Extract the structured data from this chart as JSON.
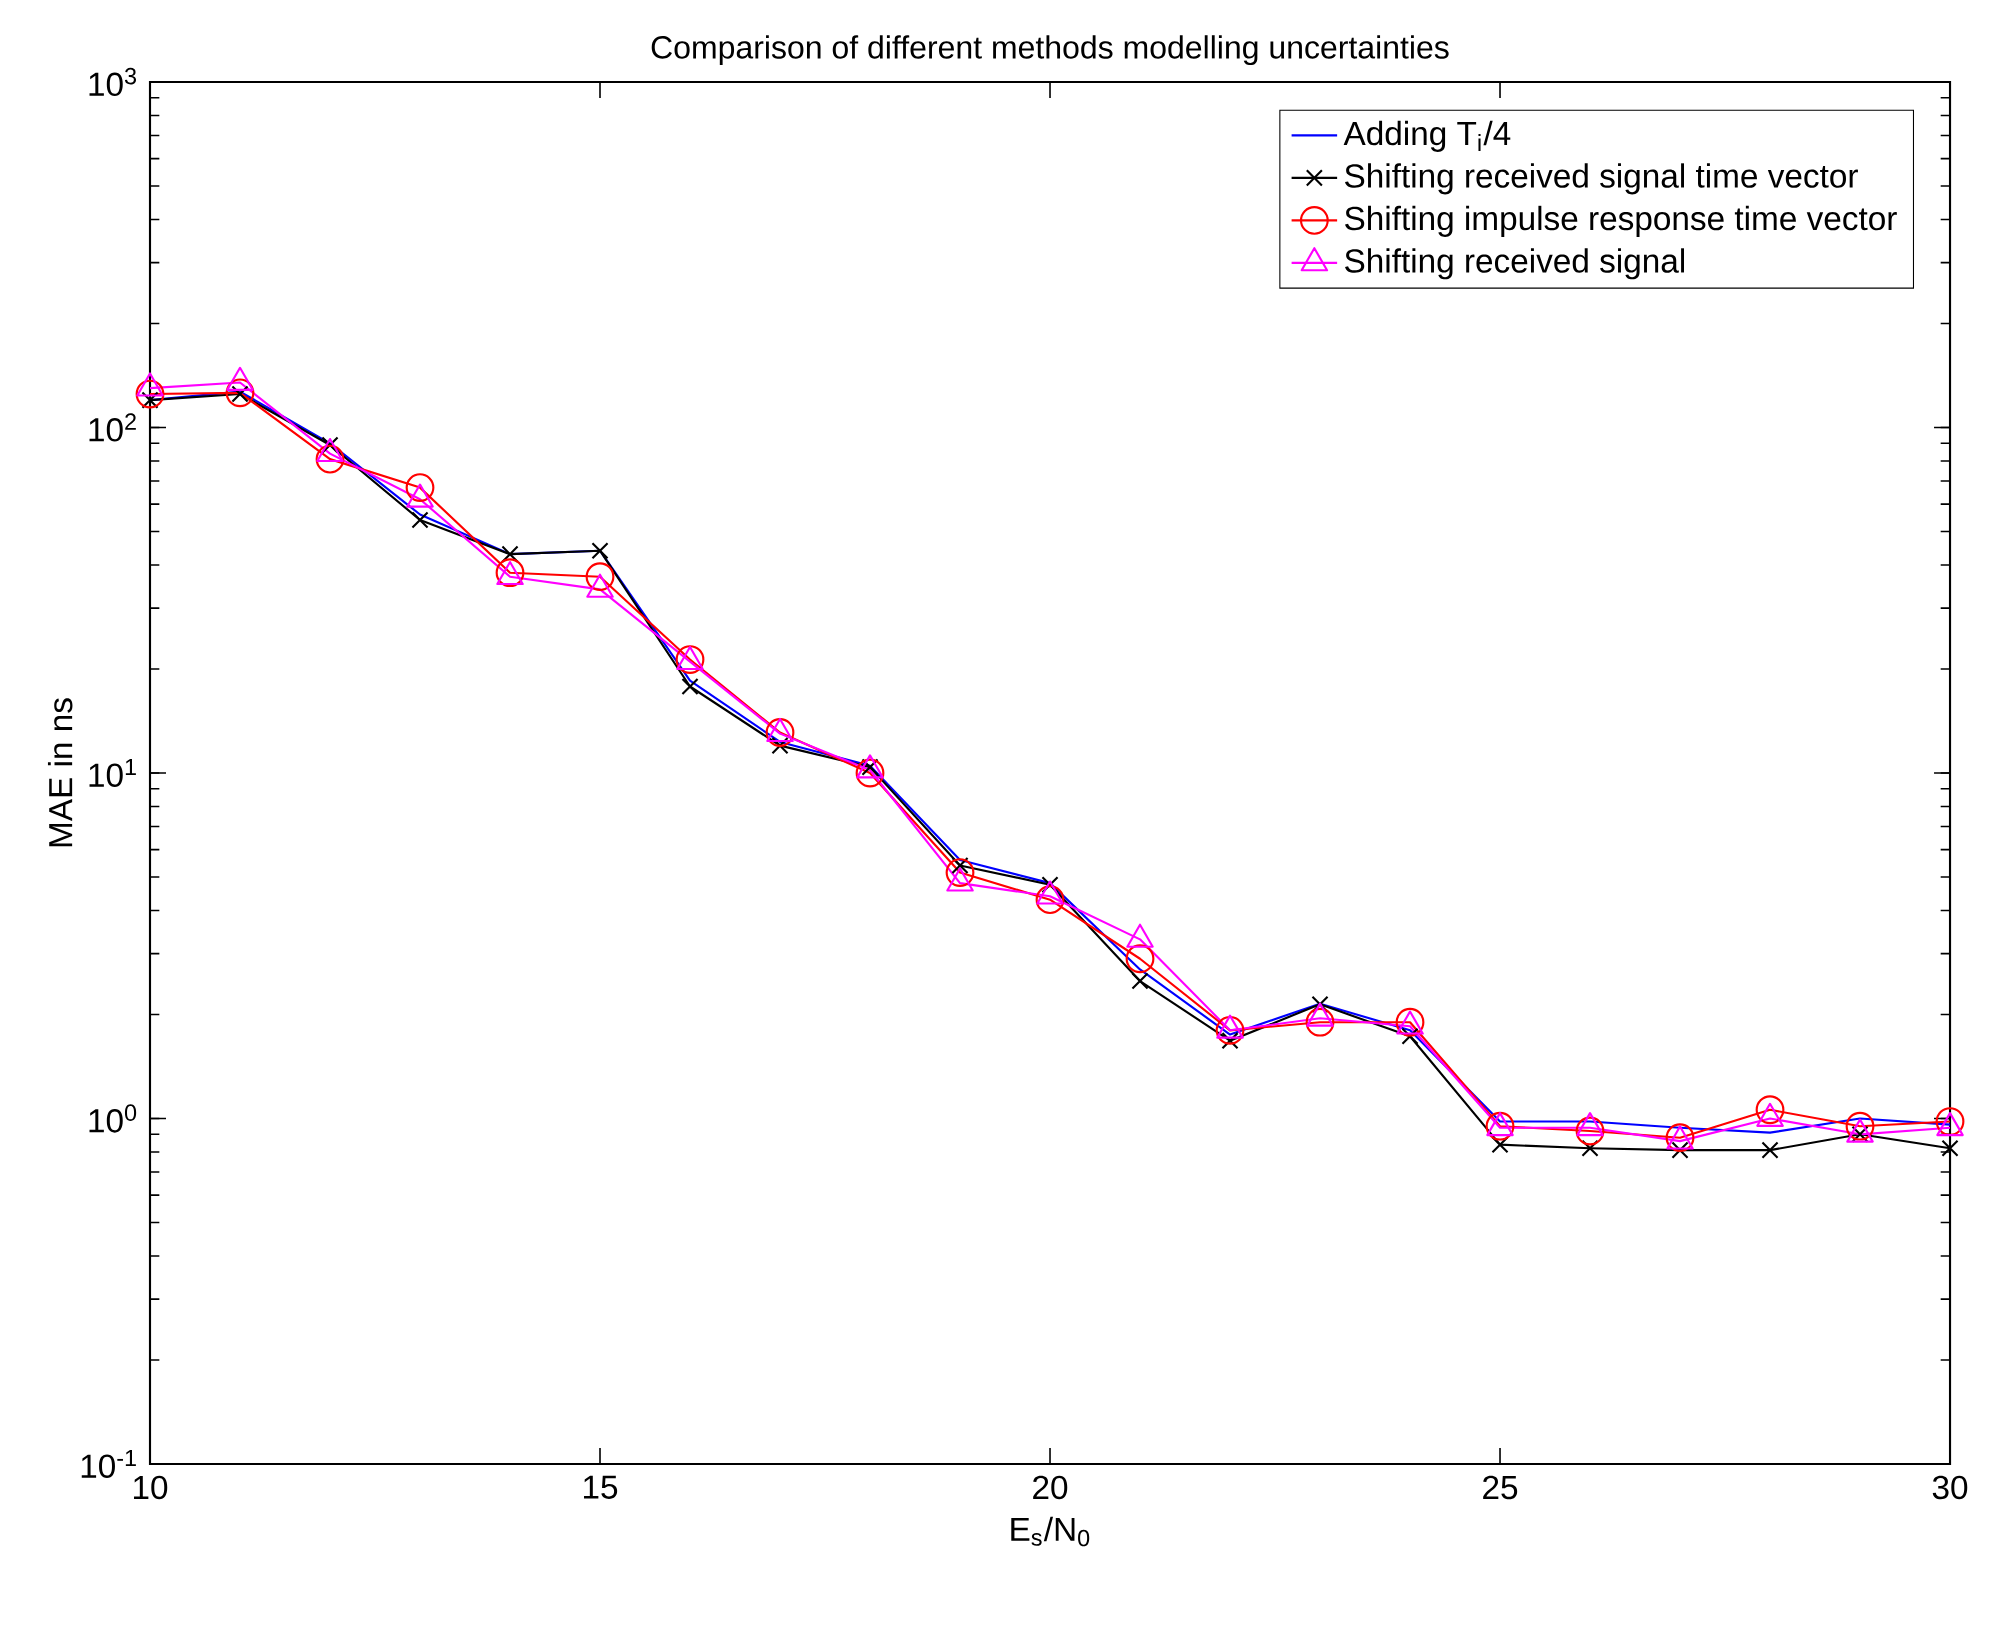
{
  "chart_data": {
    "type": "line",
    "title": "Comparison of different methods modelling uncertainties",
    "xlabel": "E$_{s}$/N$_{0}$",
    "ylabel": "MAE in ns",
    "log": "y",
    "grid": false,
    "legend": "top right",
    "x": [
      10,
      11,
      12,
      13,
      14,
      15,
      16,
      17,
      18,
      19,
      20,
      21,
      22,
      23,
      24,
      25,
      26,
      27,
      28,
      29,
      30
    ],
    "xlim": [
      10,
      30
    ],
    "xticks": [
      10,
      15,
      20,
      25,
      30
    ],
    "ylim": [
      0.1,
      1000
    ],
    "yticks": [
      {
        "value": 0.1,
        "label": "10$^{-1}$"
      },
      {
        "value": 1,
        "label": "10$^{0}$"
      },
      {
        "value": 10,
        "label": "10$^{1}$"
      },
      {
        "value": 100,
        "label": "10$^{2}$"
      },
      {
        "value": 1000,
        "label": "10$^{3}$"
      }
    ],
    "series": [
      {
        "name": "Adding T$_{i}$/4",
        "color": "#0000ff",
        "marker": "none",
        "values": [
          120,
          127,
          90,
          56,
          43,
          44,
          18.5,
          12.3,
          10.5,
          5.6,
          4.8,
          2.7,
          1.75,
          2.15,
          1.8,
          0.98,
          0.98,
          0.94,
          0.91,
          1.0,
          0.96
        ]
      },
      {
        "name": "Shifting received signal time vector",
        "color": "#000000",
        "marker": "cross",
        "values": [
          120,
          125,
          89,
          54,
          43,
          44,
          17.8,
          12,
          10.4,
          5.4,
          4.75,
          2.5,
          1.68,
          2.14,
          1.73,
          0.84,
          0.82,
          0.81,
          0.81,
          0.9,
          0.82
        ]
      },
      {
        "name": "Shifting impulse response time vector",
        "color": "#ff0000",
        "marker": "circle",
        "values": [
          125,
          126,
          81,
          67,
          38,
          37,
          21.3,
          13.1,
          10,
          5.15,
          4.3,
          2.9,
          1.8,
          1.9,
          1.9,
          0.95,
          0.92,
          0.88,
          1.06,
          0.95,
          0.98
        ]
      },
      {
        "name": "Shifting received signal",
        "color": "#ff00ff",
        "marker": "triangle",
        "values": [
          130,
          135,
          84,
          62,
          37,
          34,
          21,
          13,
          10.2,
          4.8,
          4.4,
          3.3,
          1.8,
          1.95,
          1.85,
          0.94,
          0.94,
          0.86,
          1.0,
          0.9,
          0.94
        ]
      }
    ]
  }
}
